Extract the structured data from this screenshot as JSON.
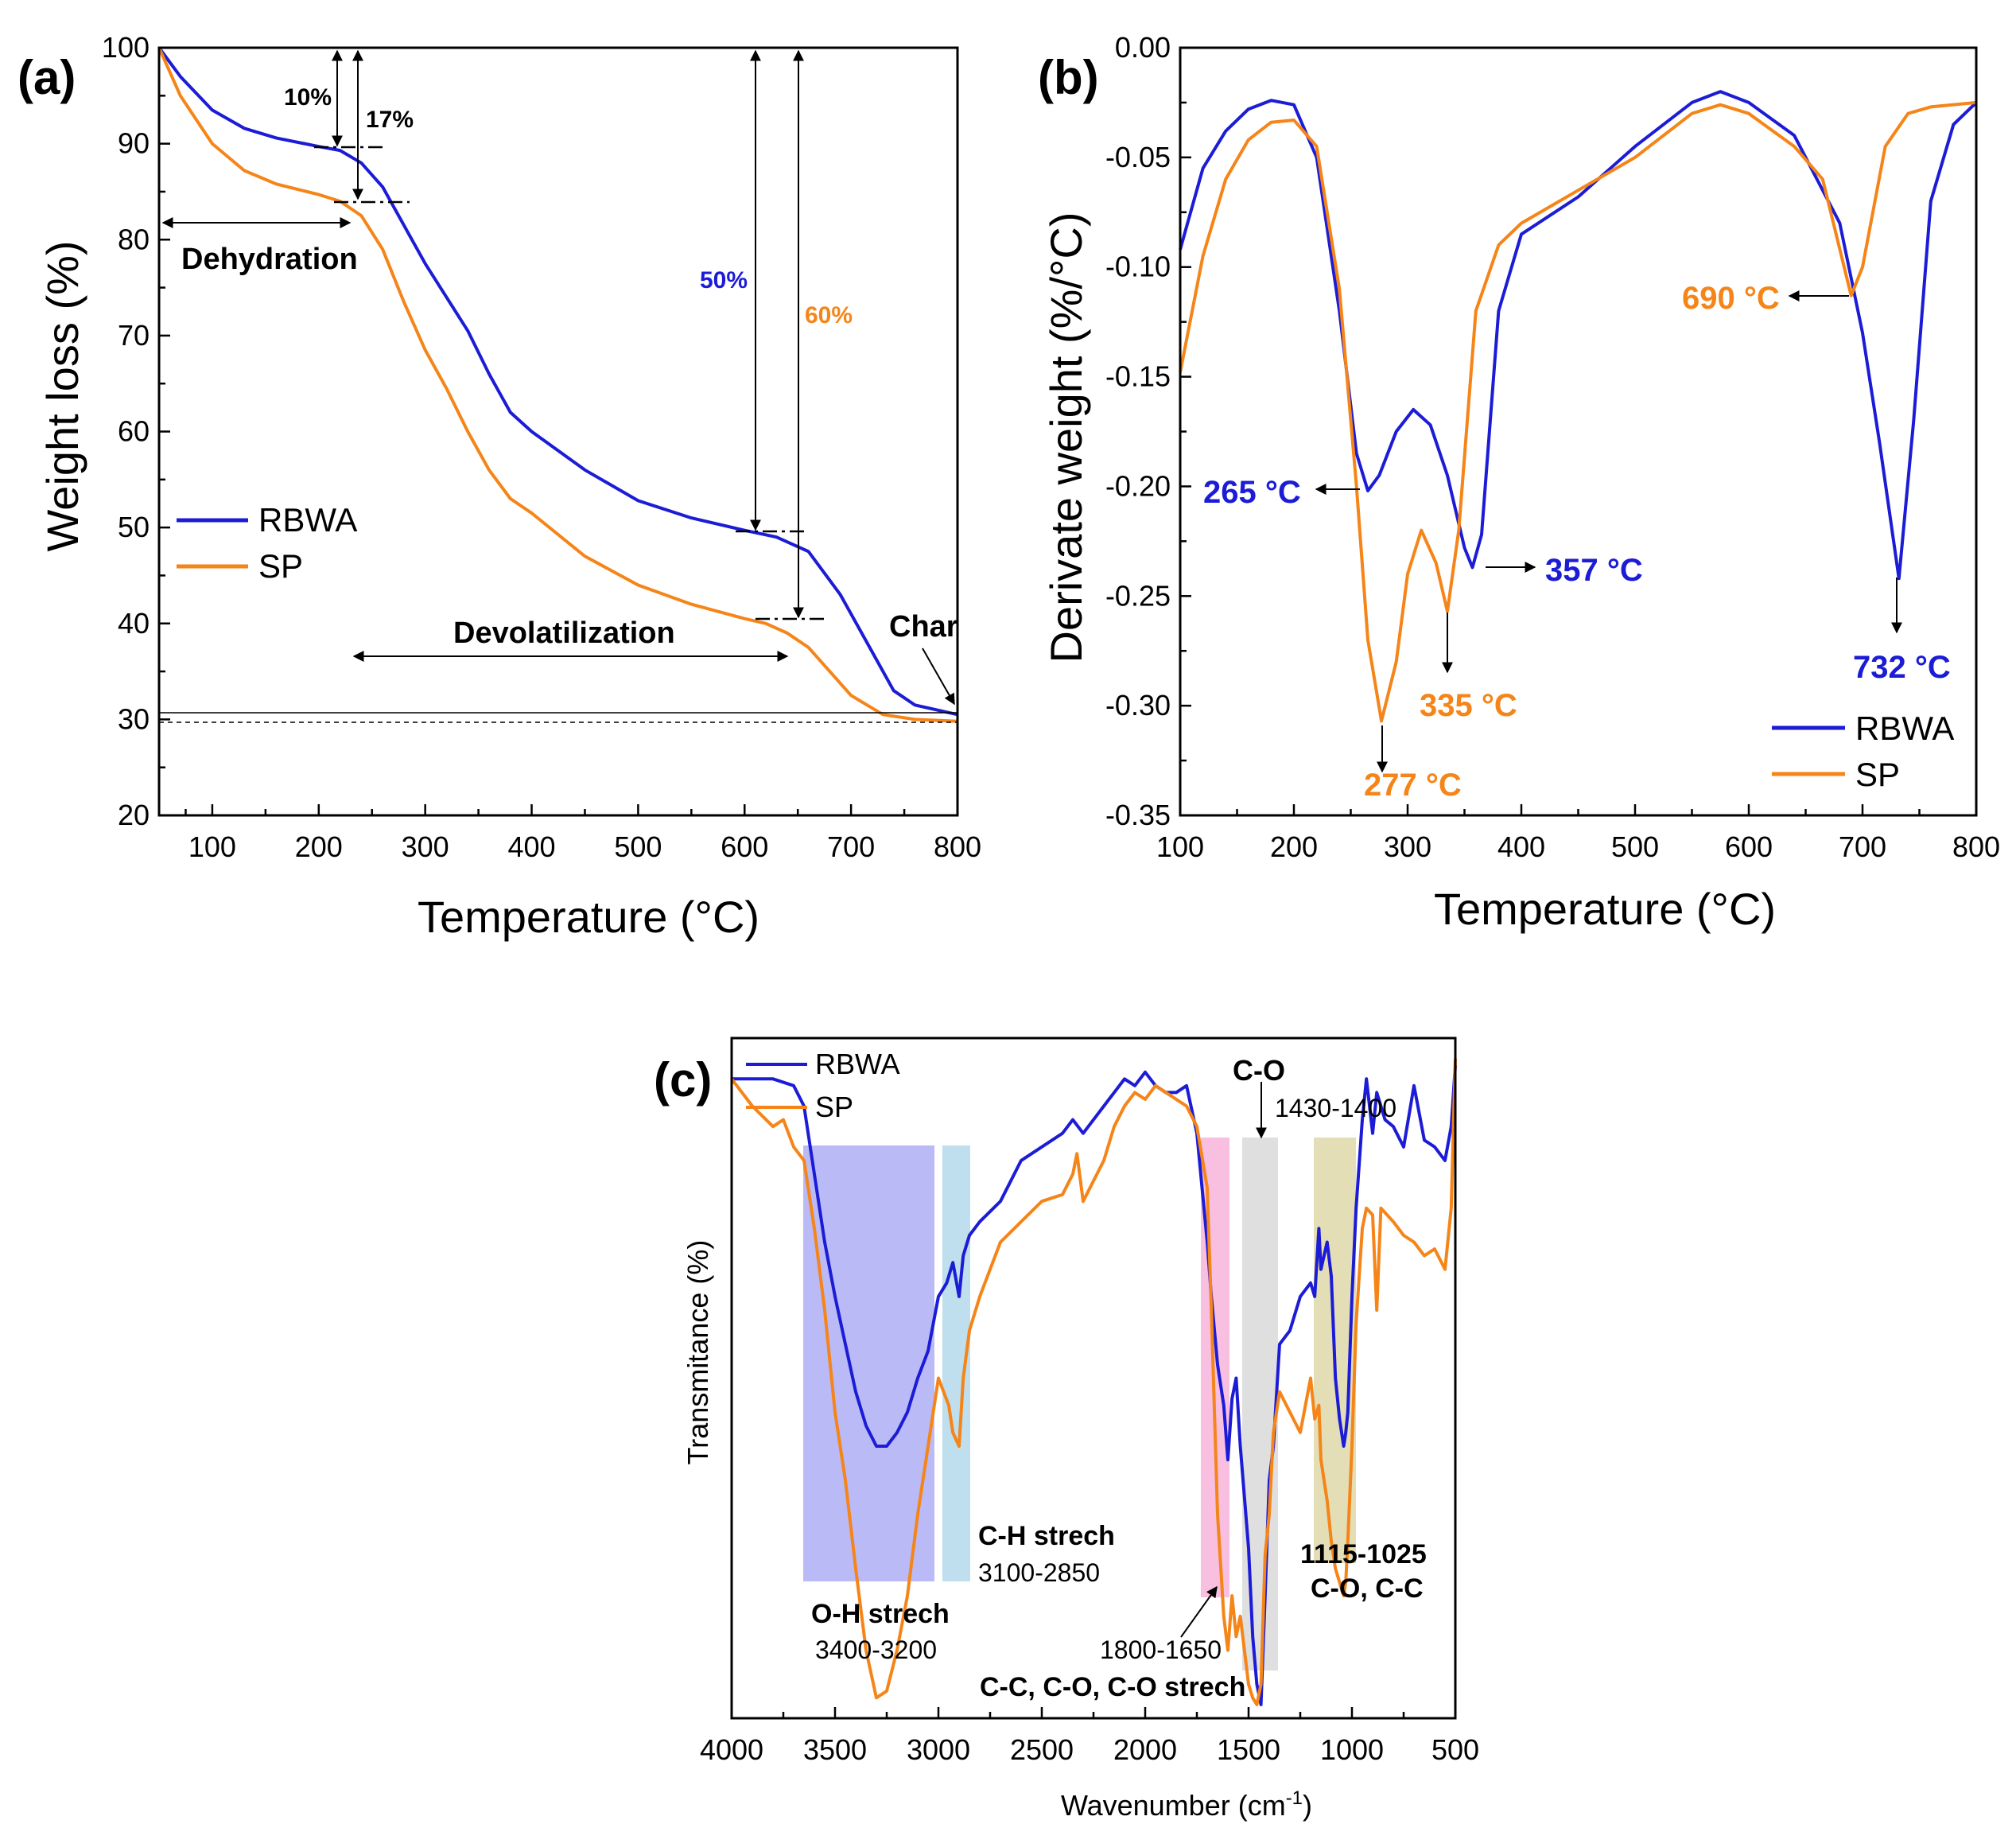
{
  "colors": {
    "rbwa": "#1c1cd6",
    "sp": "#f58518",
    "band_oh": "#9c9cf2",
    "band_ch": "#a9d3e8",
    "band_pink": "#f5a9d6",
    "band_gray": "#c9c9c9",
    "band_olive": "#d9d39c"
  },
  "panels": {
    "a": {
      "label": "(a)",
      "xlabel": "Temperature (°C)",
      "ylabel": "Weight loss (%)",
      "xticks": [
        "100",
        "200",
        "300",
        "400",
        "500",
        "600",
        "700",
        "800"
      ],
      "yticks": [
        "20",
        "30",
        "40",
        "50",
        "60",
        "70",
        "80",
        "90",
        "100"
      ],
      "legend": [
        "RBWA",
        "SP"
      ],
      "annotations": {
        "p10": "10%",
        "p17": "17%",
        "p50": "50%",
        "p60": "60%",
        "dehydration": "Dehydration",
        "devolatilization": "Devolatilization",
        "char": "Char"
      }
    },
    "b": {
      "label": "(b)",
      "xlabel": "Temperature (°C)",
      "ylabel": "Derivate weight  (%/°C)",
      "xticks": [
        "100",
        "200",
        "300",
        "400",
        "500",
        "600",
        "700",
        "800"
      ],
      "yticks": [
        "0.00",
        "-0.05",
        "-0.10",
        "-0.15",
        "-0.20",
        "-0.25",
        "-0.30",
        "-0.35"
      ],
      "legend": [
        "RBWA",
        "SP"
      ],
      "annotations": {
        "t265": "265 °C",
        "t357": "357 °C",
        "t732": "732 °C",
        "t277": "277 °C",
        "t335": "335 °C",
        "t690": "690 °C"
      }
    },
    "c": {
      "label": "(c)",
      "xlabel": "Wavenumber (cm",
      "xlabel_sup": "-1",
      "xlabel_end": ")",
      "ylabel": "Transmitance (%)",
      "xticks": [
        "4000",
        "3500",
        "3000",
        "2500",
        "2000",
        "1500",
        "1000",
        "500"
      ],
      "legend": [
        "RBWA",
        "SP"
      ],
      "annotations": {
        "co_top": "C-O",
        "r1430": "1430-1400",
        "oh_name": "O-H strech",
        "oh_range": "3400-3200",
        "ch_name": "C-H strech",
        "ch_range": "3100-2850",
        "r1800": "1800-1650",
        "cc_name": "C-C, C-O, C-O strech",
        "r1115": "1115-1025",
        "coc": "C-O, C-C"
      }
    }
  },
  "chart_data": [
    {
      "type": "line",
      "title": "(a)",
      "xlabel": "Temperature (°C)",
      "ylabel": "Weight loss (%)",
      "xlim": [
        50,
        800
      ],
      "ylim": [
        20,
        100
      ],
      "series": [
        {
          "name": "RBWA",
          "x": [
            50,
            70,
            100,
            130,
            160,
            200,
            220,
            240,
            260,
            280,
            300,
            320,
            340,
            360,
            380,
            400,
            450,
            500,
            550,
            600,
            630,
            660,
            690,
            720,
            740,
            760,
            800
          ],
          "y": [
            100,
            97,
            93.5,
            91.6,
            90.6,
            89.7,
            89.3,
            88,
            85.5,
            81.5,
            77.5,
            74,
            70.5,
            66,
            62,
            60,
            56,
            52.8,
            51,
            49.7,
            49,
            47.5,
            43,
            37,
            33,
            31.5,
            30.5
          ]
        },
        {
          "name": "SP",
          "x": [
            50,
            70,
            100,
            130,
            160,
            200,
            220,
            240,
            260,
            280,
            300,
            320,
            340,
            360,
            380,
            400,
            450,
            500,
            550,
            600,
            620,
            640,
            660,
            680,
            700,
            730,
            760,
            800
          ],
          "y": [
            100,
            95,
            90,
            87.2,
            85.8,
            84.7,
            84,
            82.5,
            79,
            73.5,
            68.5,
            64.5,
            60,
            56,
            53,
            51.5,
            47,
            44,
            42,
            40.5,
            40,
            39,
            37.5,
            35,
            32.5,
            30.5,
            30,
            29.8
          ]
        }
      ],
      "annotations": [
        "10%",
        "17%",
        "50%",
        "60%",
        "Dehydration",
        "Devolatilization",
        "Char"
      ]
    },
    {
      "type": "line",
      "title": "(b)",
      "xlabel": "Temperature (°C)",
      "ylabel": "Derivate weight  (%/°C)",
      "xlim": [
        100,
        800
      ],
      "ylim": [
        -0.35,
        0.0
      ],
      "series": [
        {
          "name": "RBWA",
          "x": [
            100,
            120,
            140,
            160,
            180,
            200,
            220,
            240,
            255,
            265,
            275,
            290,
            305,
            320,
            335,
            350,
            357,
            365,
            380,
            400,
            450,
            500,
            550,
            575,
            600,
            640,
            680,
            700,
            715,
            732,
            745,
            760,
            780,
            800
          ],
          "y": [
            -0.092,
            -0.055,
            -0.038,
            -0.028,
            -0.024,
            -0.026,
            -0.05,
            -0.12,
            -0.185,
            -0.202,
            -0.195,
            -0.175,
            -0.165,
            -0.172,
            -0.195,
            -0.228,
            -0.237,
            -0.222,
            -0.12,
            -0.085,
            -0.068,
            -0.045,
            -0.025,
            -0.02,
            -0.025,
            -0.04,
            -0.08,
            -0.13,
            -0.18,
            -0.242,
            -0.17,
            -0.07,
            -0.035,
            -0.025
          ]
        },
        {
          "name": "SP",
          "x": [
            100,
            120,
            140,
            160,
            180,
            200,
            220,
            240,
            255,
            265,
            277,
            290,
            300,
            312,
            325,
            335,
            345,
            360,
            380,
            400,
            450,
            500,
            550,
            575,
            600,
            640,
            665,
            690,
            700,
            720,
            740,
            760,
            800
          ],
          "y": [
            -0.148,
            -0.095,
            -0.06,
            -0.042,
            -0.034,
            -0.033,
            -0.045,
            -0.11,
            -0.2,
            -0.27,
            -0.307,
            -0.28,
            -0.24,
            -0.22,
            -0.235,
            -0.257,
            -0.22,
            -0.12,
            -0.09,
            -0.08,
            -0.065,
            -0.05,
            -0.03,
            -0.026,
            -0.03,
            -0.045,
            -0.06,
            -0.113,
            -0.1,
            -0.045,
            -0.03,
            -0.027,
            -0.025
          ]
        }
      ],
      "annotations": [
        "265 °C",
        "357 °C",
        "732 °C",
        "277 °C",
        "335 °C",
        "690 °C"
      ]
    },
    {
      "type": "line",
      "title": "(c)",
      "xlabel": "Wavenumber (cm-1)",
      "ylabel": "Transmitance (%)",
      "xlim": [
        4000,
        500
      ],
      "ylim": [
        0,
        100
      ],
      "series": [
        {
          "name": "RBWA",
          "x": [
            4000,
            3800,
            3700,
            3650,
            3600,
            3550,
            3500,
            3450,
            3400,
            3350,
            3300,
            3250,
            3200,
            3150,
            3100,
            3050,
            3000,
            2960,
            2930,
            2900,
            2880,
            2850,
            2800,
            2700,
            2600,
            2500,
            2400,
            2350,
            2300,
            2200,
            2150,
            2100,
            2050,
            2000,
            1950,
            1900,
            1850,
            1800,
            1750,
            1700,
            1680,
            1650,
            1620,
            1600,
            1580,
            1560,
            1540,
            1500,
            1480,
            1460,
            1440,
            1420,
            1400,
            1380,
            1350,
            1300,
            1250,
            1200,
            1180,
            1160,
            1150,
            1120,
            1100,
            1080,
            1060,
            1040,
            1030,
            1020,
            1000,
            980,
            950,
            930,
            900,
            880,
            860,
            840,
            800,
            750,
            700,
            650,
            600,
            550,
            520,
            500
          ],
          "y": [
            94,
            94,
            93,
            90,
            80,
            70,
            62,
            55,
            48,
            43,
            40,
            40,
            42,
            45,
            50,
            54,
            62,
            64,
            67,
            62,
            68,
            71,
            73,
            76,
            82,
            84,
            86,
            88,
            86,
            90,
            92,
            94,
            93,
            95,
            93,
            92,
            92,
            93,
            86,
            70,
            62,
            52,
            46,
            38,
            47,
            50,
            40,
            25,
            12,
            5,
            2,
            18,
            35,
            40,
            55,
            57,
            62,
            64,
            62,
            72,
            66,
            70,
            65,
            50,
            44,
            40,
            42,
            45,
            62,
            75,
            88,
            94,
            86,
            92,
            90,
            88,
            87,
            84,
            93,
            85,
            84,
            82,
            87,
            96
          ]
        },
        {
          "name": "SP",
          "x": [
            4000,
            3900,
            3800,
            3750,
            3700,
            3650,
            3600,
            3550,
            3500,
            3450,
            3400,
            3350,
            3300,
            3250,
            3200,
            3150,
            3100,
            3050,
            3000,
            2950,
            2930,
            2900,
            2880,
            2850,
            2800,
            2700,
            2600,
            2500,
            2400,
            2350,
            2330,
            2300,
            2200,
            2150,
            2100,
            2050,
            2000,
            1950,
            1900,
            1850,
            1800,
            1750,
            1700,
            1680,
            1650,
            1620,
            1600,
            1580,
            1560,
            1540,
            1500,
            1480,
            1460,
            1440,
            1420,
            1400,
            1380,
            1350,
            1300,
            1250,
            1200,
            1180,
            1160,
            1150,
            1120,
            1100,
            1080,
            1060,
            1040,
            1030,
            1020,
            1000,
            980,
            950,
            930,
            900,
            880,
            860,
            800,
            750,
            700,
            650,
            600,
            550,
            520,
            500
          ],
          "y": [
            94,
            90,
            87,
            88,
            84,
            82,
            72,
            60,
            45,
            35,
            22,
            10,
            3,
            4,
            10,
            18,
            30,
            40,
            50,
            46,
            42,
            40,
            50,
            57,
            62,
            70,
            73,
            76,
            77,
            80,
            83,
            76,
            82,
            87,
            90,
            92,
            91,
            93,
            92,
            91,
            90,
            87,
            78,
            60,
            30,
            15,
            10,
            18,
            12,
            15,
            5,
            3,
            2,
            5,
            24,
            30,
            42,
            48,
            45,
            42,
            50,
            44,
            46,
            38,
            32,
            26,
            22,
            20,
            18,
            20,
            26,
            40,
            58,
            72,
            75,
            74,
            60,
            75,
            73,
            71,
            70,
            68,
            69,
            66,
            75,
            97
          ]
        }
      ],
      "bands": [
        "O-H strech 3400-3200",
        "C-H strech 3100-2850",
        "1800-1650",
        "C-O 1430-1400",
        "1115-1025"
      ]
    }
  ]
}
